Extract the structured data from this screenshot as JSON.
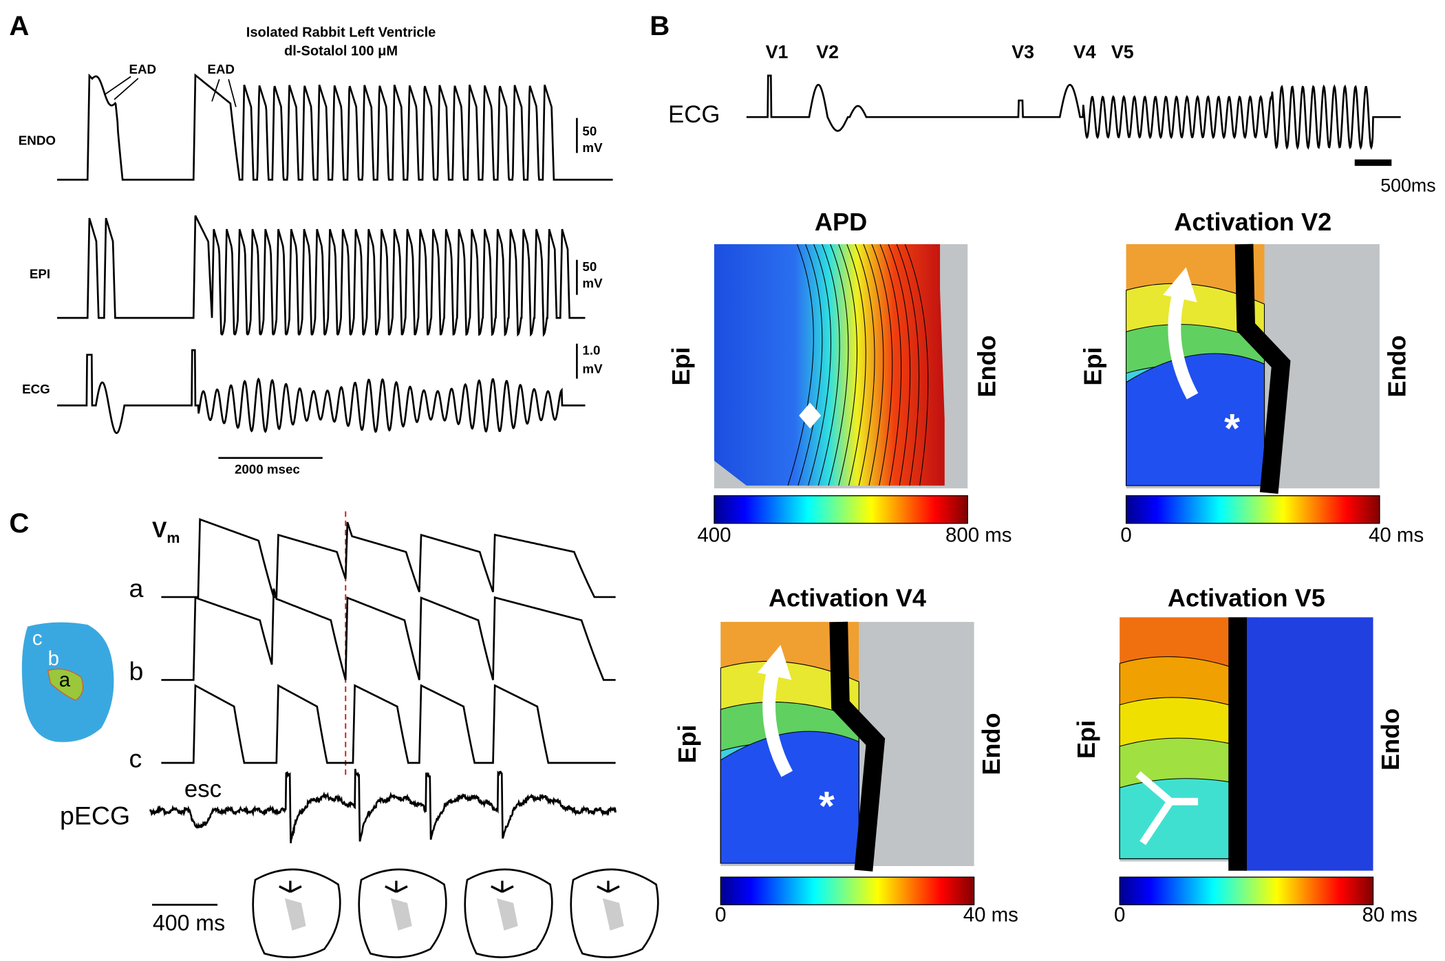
{
  "panel_a": {
    "label": "A",
    "title": [
      "Isolated Rabbit Left Ventricle",
      "dl-Sotalol 100 μM"
    ],
    "traces": [
      {
        "label": "ENDO",
        "scale": [
          "50",
          "mV"
        ]
      },
      {
        "label": "EPI",
        "scale": [
          "50",
          "mV"
        ]
      },
      {
        "label": "ECG",
        "scale": [
          "1.0",
          "mV"
        ]
      }
    ],
    "annotations": [
      "EAD",
      "EAD"
    ],
    "time_scale": "2000 msec"
  },
  "panel_b": {
    "label": "B",
    "ecg_label": "ECG",
    "beats": [
      "V1",
      "V2",
      "V3",
      "V4",
      "V5"
    ],
    "time_scale": "500ms",
    "maps": [
      {
        "title": "APD",
        "left": "Epi",
        "right": "Endo",
        "scale_min": "400",
        "scale_max": "800 ms"
      },
      {
        "title": "Activation  V2",
        "left": "Epi",
        "right": "Endo",
        "scale_min": "0",
        "scale_max": "40 ms",
        "marker": "*"
      },
      {
        "title": "Activation V4",
        "left": "Epi",
        "right": "Endo",
        "scale_min": "0",
        "scale_max": "40 ms",
        "marker": "*"
      },
      {
        "title": "Activation V5",
        "left": "Epi",
        "right": "Endo",
        "scale_min": "0",
        "scale_max": "80 ms"
      }
    ]
  },
  "panel_c": {
    "label": "C",
    "vm": {
      "main": "V",
      "sub": "m"
    },
    "traces": [
      "a",
      "b",
      "c",
      "pECG"
    ],
    "annotation": "esc",
    "time_scale": "400 ms",
    "inset_labels": [
      "c",
      "b",
      "a"
    ]
  }
}
